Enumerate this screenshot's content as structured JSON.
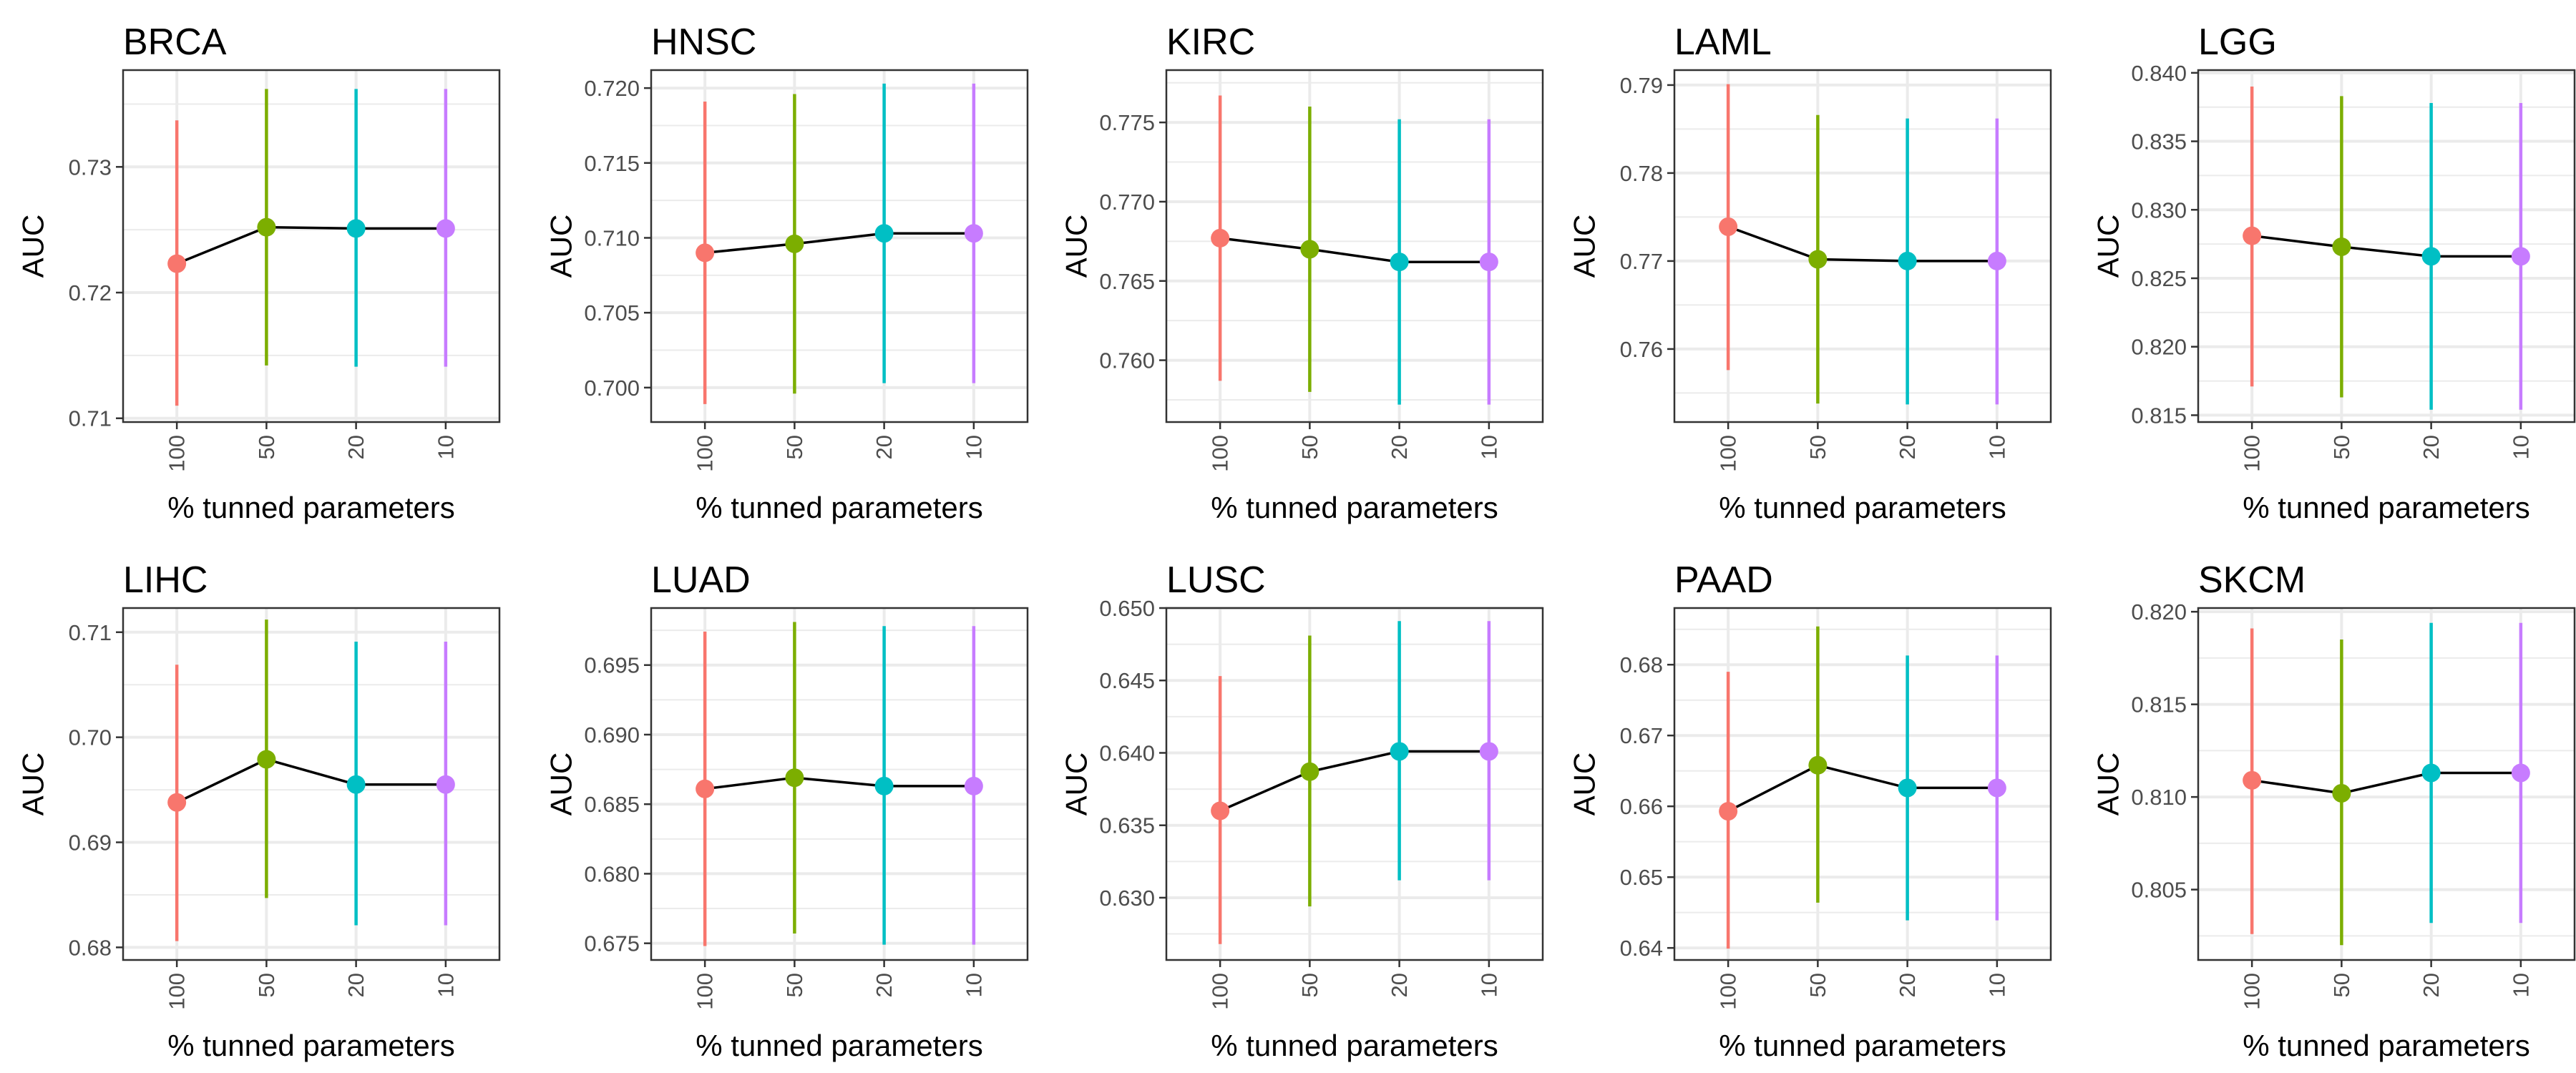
{
  "figure": {
    "colors": {
      "100": "#F8766D",
      "50": "#7CAE00",
      "20": "#00BFC4",
      "10": "#C77CFF",
      "line": "#000000",
      "grid": "#EBEBEB",
      "panel_border": "#333333",
      "tick_text": "#4D4D4D"
    }
  },
  "chart_data": [
    {
      "type": "line",
      "title": "BRCA",
      "xlabel": "% tunned parameters",
      "ylabel": "AUC",
      "categories": [
        "100",
        "50",
        "20",
        "10"
      ],
      "ylim": [
        0.7097,
        0.7377
      ],
      "yticks": [
        0.71,
        0.72,
        0.73
      ],
      "ytick_labels": [
        "0.71",
        "0.72",
        "0.73"
      ],
      "mean": [
        0.7223,
        0.7252,
        0.7251,
        0.7251
      ],
      "lower": [
        0.711,
        0.7142,
        0.7141,
        0.7141
      ],
      "upper": [
        0.7337,
        0.7362,
        0.7362,
        0.7362
      ]
    },
    {
      "type": "line",
      "title": "HNSC",
      "xlabel": "% tunned parameters",
      "ylabel": "AUC",
      "categories": [
        "100",
        "50",
        "20",
        "10"
      ],
      "ylim": [
        0.6977,
        0.7212
      ],
      "yticks": [
        0.7,
        0.705,
        0.71,
        0.715,
        0.72
      ],
      "ytick_labels": [
        "0.700",
        "0.705",
        "0.710",
        "0.715",
        "0.720"
      ],
      "mean": [
        0.709,
        0.7096,
        0.7103,
        0.7103
      ],
      "lower": [
        0.6989,
        0.6996,
        0.7003,
        0.7003
      ],
      "upper": [
        0.7191,
        0.7196,
        0.7203,
        0.7203
      ]
    },
    {
      "type": "line",
      "title": "KIRC",
      "xlabel": "% tunned parameters",
      "ylabel": "AUC",
      "categories": [
        "100",
        "50",
        "20",
        "10"
      ],
      "ylim": [
        0.7561,
        0.7783
      ],
      "yticks": [
        0.76,
        0.765,
        0.77,
        0.775
      ],
      "ytick_labels": [
        "0.760",
        "0.765",
        "0.770",
        "0.775"
      ],
      "mean": [
        0.7677,
        0.767,
        0.7662,
        0.7662
      ],
      "lower": [
        0.7587,
        0.758,
        0.7572,
        0.7572
      ],
      "upper": [
        0.7767,
        0.776,
        0.7752,
        0.7752
      ]
    },
    {
      "type": "line",
      "title": "LAML",
      "xlabel": "% tunned parameters",
      "ylabel": "AUC",
      "categories": [
        "100",
        "50",
        "20",
        "10"
      ],
      "ylim": [
        0.7517,
        0.7917
      ],
      "yticks": [
        0.76,
        0.77,
        0.78,
        0.79
      ],
      "ytick_labels": [
        "0.76",
        "0.77",
        "0.78",
        "0.79"
      ],
      "mean": [
        0.7739,
        0.7702,
        0.77,
        0.77
      ],
      "lower": [
        0.7576,
        0.7538,
        0.7537,
        0.7537
      ],
      "upper": [
        0.7901,
        0.7866,
        0.7862,
        0.7862
      ]
    },
    {
      "type": "line",
      "title": "LGG",
      "xlabel": "% tunned parameters",
      "ylabel": "AUC",
      "categories": [
        "100",
        "50",
        "20",
        "10"
      ],
      "ylim": [
        0.8145,
        0.8402
      ],
      "yticks": [
        0.815,
        0.82,
        0.825,
        0.83,
        0.835,
        0.84
      ],
      "ytick_labels": [
        "0.815",
        "0.820",
        "0.825",
        "0.830",
        "0.835",
        "0.840"
      ],
      "mean": [
        0.8281,
        0.8273,
        0.8266,
        0.8266
      ],
      "lower": [
        0.8171,
        0.8163,
        0.8154,
        0.8154
      ],
      "upper": [
        0.839,
        0.8383,
        0.8378,
        0.8378
      ]
    },
    {
      "type": "line",
      "title": "LIHC",
      "xlabel": "% tunned parameters",
      "ylabel": "AUC",
      "categories": [
        "100",
        "50",
        "20",
        "10"
      ],
      "ylim": [
        0.6788,
        0.7123
      ],
      "yticks": [
        0.68,
        0.69,
        0.7,
        0.71
      ],
      "ytick_labels": [
        "0.68",
        "0.69",
        "0.70",
        "0.71"
      ],
      "mean": [
        0.6938,
        0.6979,
        0.6955,
        0.6955
      ],
      "lower": [
        0.6806,
        0.6847,
        0.6821,
        0.6821
      ],
      "upper": [
        0.7069,
        0.7112,
        0.7091,
        0.7091
      ]
    },
    {
      "type": "line",
      "title": "LUAD",
      "xlabel": "% tunned parameters",
      "ylabel": "AUC",
      "categories": [
        "100",
        "50",
        "20",
        "10"
      ],
      "ylim": [
        0.6738,
        0.6991
      ],
      "yticks": [
        0.675,
        0.68,
        0.685,
        0.69,
        0.695
      ],
      "ytick_labels": [
        "0.675",
        "0.680",
        "0.685",
        "0.690",
        "0.695"
      ],
      "mean": [
        0.6861,
        0.6869,
        0.6863,
        0.6863
      ],
      "lower": [
        0.6748,
        0.6757,
        0.6749,
        0.6749
      ],
      "upper": [
        0.6974,
        0.6981,
        0.6978,
        0.6978
      ]
    },
    {
      "type": "line",
      "title": "LUSC",
      "xlabel": "% tunned parameters",
      "ylabel": "AUC",
      "categories": [
        "100",
        "50",
        "20",
        "10"
      ],
      "ylim": [
        0.6257,
        0.65
      ],
      "yticks": [
        0.63,
        0.635,
        0.64,
        0.645,
        0.65
      ],
      "ytick_labels": [
        "0.630",
        "0.635",
        "0.640",
        "0.645",
        "0.650"
      ],
      "mean": [
        0.636,
        0.6387,
        0.6401,
        0.6401
      ],
      "lower": [
        0.6268,
        0.6294,
        0.6312,
        0.6312
      ],
      "upper": [
        0.6453,
        0.6481,
        0.6491,
        0.6491
      ]
    },
    {
      "type": "line",
      "title": "PAAD",
      "xlabel": "% tunned parameters",
      "ylabel": "AUC",
      "categories": [
        "100",
        "50",
        "20",
        "10"
      ],
      "ylim": [
        0.6383,
        0.688
      ],
      "yticks": [
        0.64,
        0.65,
        0.66,
        0.67,
        0.68
      ],
      "ytick_labels": [
        "0.64",
        "0.65",
        "0.66",
        "0.67",
        "0.68"
      ],
      "mean": [
        0.6593,
        0.6658,
        0.6626,
        0.6626
      ],
      "lower": [
        0.6399,
        0.6464,
        0.6439,
        0.6439
      ],
      "upper": [
        0.679,
        0.6854,
        0.6813,
        0.6813
      ]
    },
    {
      "type": "line",
      "title": "SKCM",
      "xlabel": "% tunned parameters",
      "ylabel": "AUC",
      "categories": [
        "100",
        "50",
        "20",
        "10"
      ],
      "ylim": [
        0.8012,
        0.8202
      ],
      "yticks": [
        0.805,
        0.81,
        0.815,
        0.82
      ],
      "ytick_labels": [
        "0.805",
        "0.810",
        "0.815",
        "0.820"
      ],
      "mean": [
        0.8109,
        0.8102,
        0.8113,
        0.8113
      ],
      "lower": [
        0.8026,
        0.802,
        0.8032,
        0.8032
      ],
      "upper": [
        0.8191,
        0.8185,
        0.8194,
        0.8194
      ]
    }
  ]
}
